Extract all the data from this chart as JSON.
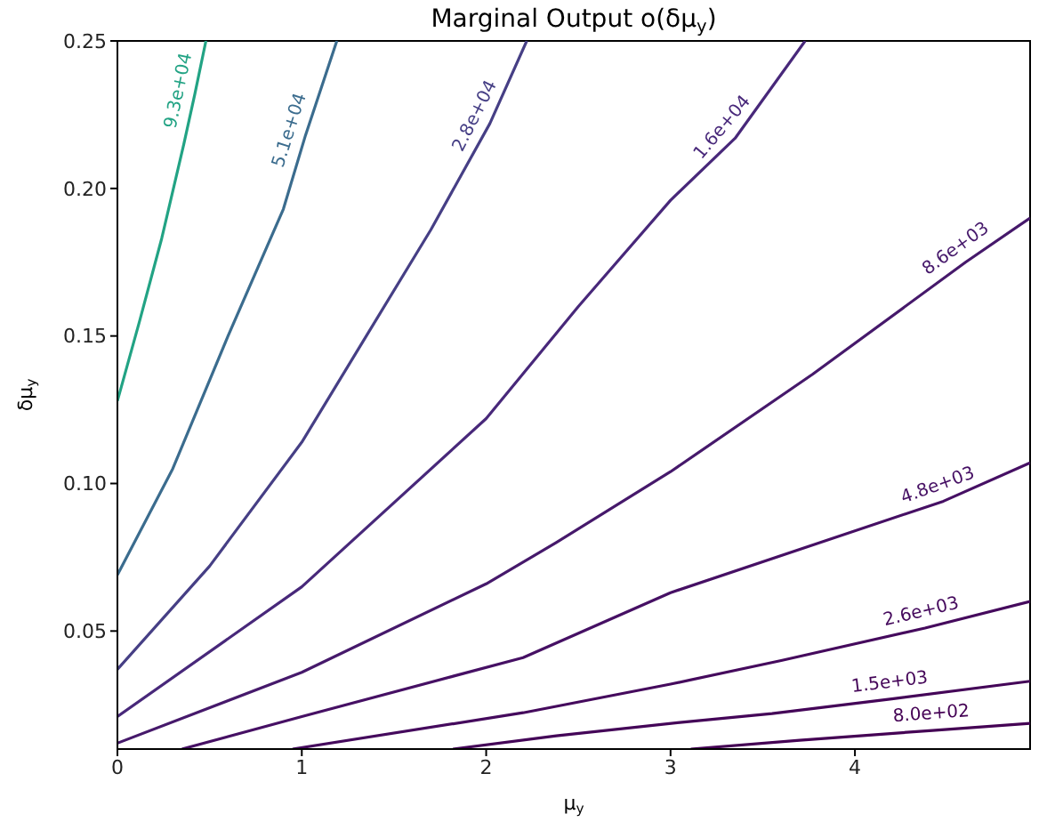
{
  "chart_data": {
    "type": "line",
    "title": "Marginal Output o(δμ$_{y}$)",
    "xlabel": "μ$_{y}$",
    "ylabel": "δμ$_{y}$",
    "xlim": [
      0,
      4.95
    ],
    "ylim": [
      0.01,
      0.25
    ],
    "xticks": [
      0,
      1,
      2,
      3,
      4
    ],
    "yticks": [
      0.05,
      {
        "value": 0.1,
        "label": "0.10"
      },
      0.15,
      {
        "value": 0.2,
        "label": "0.20"
      },
      0.25
    ],
    "grid": false,
    "legend": false,
    "marker": "none",
    "line_style": "solid",
    "series": [
      {
        "name": "9.3e+04",
        "color": "#22a384",
        "x": [
          0,
          0.12,
          0.24,
          0.36,
          0.42,
          0.48
        ],
        "values": [
          0.128,
          0.155,
          0.183,
          0.215,
          0.232,
          0.25
        ]
      },
      {
        "name": "5.1e+04",
        "color": "#3b6c8e",
        "x": [
          0,
          0.3,
          0.6,
          0.9,
          1.02,
          1.19
        ],
        "values": [
          0.069,
          0.105,
          0.15,
          0.193,
          0.218,
          0.25
        ]
      },
      {
        "name": "2.8e+04",
        "color": "#463f85",
        "x": [
          0,
          0.5,
          1,
          1.35,
          1.7,
          2.02,
          2.22
        ],
        "values": [
          0.037,
          0.072,
          0.114,
          0.15,
          0.186,
          0.222,
          0.25
        ]
      },
      {
        "name": "1.6e+04",
        "color": "#48287a",
        "x": [
          0,
          1,
          2,
          2.5,
          3,
          3.35,
          3.73
        ],
        "values": [
          0.021,
          0.065,
          0.122,
          0.16,
          0.196,
          0.217,
          0.25
        ]
      },
      {
        "name": "8.6e+03",
        "color": "#46196b",
        "x": [
          0,
          1,
          2,
          2.38,
          3,
          3.77,
          4.6,
          4.95
        ],
        "values": [
          0.012,
          0.036,
          0.066,
          0.08,
          0.104,
          0.137,
          0.175,
          0.19
        ]
      },
      {
        "name": "4.8e+03",
        "color": "#461064",
        "x": [
          0.35,
          1,
          2.2,
          3,
          4.48,
          4.95
        ],
        "values": [
          0.01,
          0.021,
          0.041,
          0.063,
          0.094,
          0.107
        ]
      },
      {
        "name": "2.6e+03",
        "color": "#450a5d",
        "x": [
          0.95,
          2.2,
          3,
          3.6,
          4.38,
          4.95
        ],
        "values": [
          0.01,
          0.0223,
          0.032,
          0.04,
          0.051,
          0.06
        ]
      },
      {
        "name": "1.5e+03",
        "color": "#440558",
        "x": [
          1.82,
          2.38,
          3.05,
          3.55,
          4.2,
          4.95
        ],
        "values": [
          0.01,
          0.0145,
          0.019,
          0.022,
          0.027,
          0.033
        ]
      },
      {
        "name": "8.0e+02",
        "color": "#440154",
        "x": [
          3.11,
          3.7,
          4.42,
          4.95
        ],
        "values": [
          0.01,
          0.013,
          0.0163,
          0.0187
        ]
      }
    ]
  }
}
